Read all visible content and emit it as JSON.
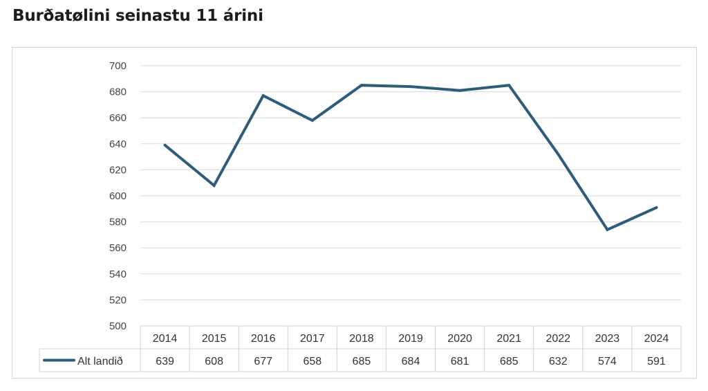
{
  "title": "Burðatølini seinastu 11 árini",
  "chart_data": {
    "type": "line",
    "title": "",
    "xlabel": "",
    "ylabel": "",
    "categories": [
      "2014",
      "2015",
      "2016",
      "2017",
      "2018",
      "2019",
      "2020",
      "2021",
      "2022",
      "2023",
      "2024"
    ],
    "series": [
      {
        "name": "Alt landið",
        "values": [
          639,
          608,
          677,
          658,
          685,
          684,
          681,
          685,
          632,
          574,
          591
        ],
        "color": "#2e5c7a"
      }
    ],
    "ylim": [
      500,
      700
    ],
    "yticks": [
      500,
      520,
      540,
      560,
      580,
      600,
      620,
      640,
      660,
      680,
      700
    ],
    "grid": true,
    "data_table": true,
    "legend": "in-data-table"
  }
}
